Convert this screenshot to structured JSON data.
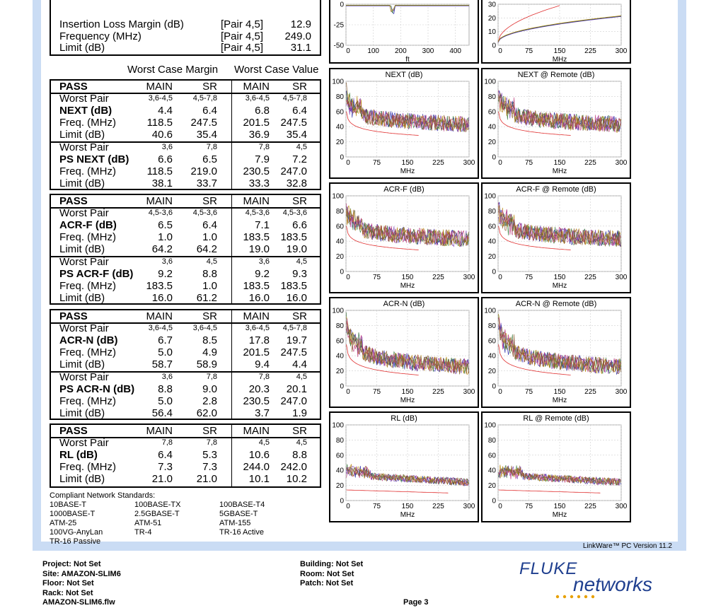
{
  "top_summary": {
    "rows": [
      {
        "label": "Insertion Loss Margin (dB)",
        "pair": "[Pair 4,5]",
        "value": "12.9"
      },
      {
        "label": "Frequency (MHz)",
        "pair": "[Pair 4,5]",
        "value": "249.0"
      },
      {
        "label": "Limit (dB)",
        "pair": "[Pair 4,5]",
        "value": "31.1"
      }
    ]
  },
  "column_headers": {
    "margin": "Worst Case Margin",
    "value": "Worst Case Value"
  },
  "sections": [
    {
      "status": "PASS",
      "cols": [
        "MAIN",
        "SR",
        "MAIN",
        "SR"
      ],
      "groups": [
        {
          "rows": [
            {
              "label": "Worst Pair",
              "v": [
                "3,6-4,5",
                "4,5-7,8",
                "3,6-4,5",
                "4,5-7,8"
              ],
              "small": true
            },
            {
              "label": "NEXT (dB)",
              "v": [
                "4.4",
                "6.4",
                "6.8",
                "6.4"
              ],
              "bold": true
            },
            {
              "label": "Freq. (MHz)",
              "v": [
                "118.5",
                "247.5",
                "201.5",
                "247.5"
              ]
            },
            {
              "label": "Limit (dB)",
              "v": [
                "40.6",
                "35.4",
                "36.9",
                "35.4"
              ]
            }
          ]
        },
        {
          "rows": [
            {
              "label": "Worst Pair",
              "v": [
                "3,6",
                "7,8",
                "7,8",
                "4,5"
              ],
              "small": true
            },
            {
              "label": "PS NEXT (dB)",
              "v": [
                "6.6",
                "6.5",
                "7.9",
                "7.2"
              ],
              "bold": true
            },
            {
              "label": "Freq. (MHz)",
              "v": [
                "118.5",
                "219.0",
                "230.5",
                "247.0"
              ]
            },
            {
              "label": "Limit (dB)",
              "v": [
                "38.1",
                "33.7",
                "33.3",
                "32.8"
              ]
            }
          ]
        }
      ]
    },
    {
      "status": "PASS",
      "cols": [
        "MAIN",
        "SR",
        "MAIN",
        "SR"
      ],
      "groups": [
        {
          "rows": [
            {
              "label": "Worst Pair",
              "v": [
                "4,5-3,6",
                "4,5-3,6",
                "4,5-3,6",
                "4,5-3,6"
              ],
              "small": true
            },
            {
              "label": "ACR-F (dB)",
              "v": [
                "6.5",
                "6.4",
                "7.1",
                "6.6"
              ],
              "bold": true
            },
            {
              "label": "Freq. (MHz)",
              "v": [
                "1.0",
                "1.0",
                "183.5",
                "183.5"
              ]
            },
            {
              "label": "Limit (dB)",
              "v": [
                "64.2",
                "64.2",
                "19.0",
                "19.0"
              ]
            }
          ]
        },
        {
          "rows": [
            {
              "label": "Worst Pair",
              "v": [
                "3,6",
                "4,5",
                "3,6",
                "4,5"
              ],
              "small": true
            },
            {
              "label": "PS ACR-F (dB)",
              "v": [
                "9.2",
                "8.8",
                "9.2",
                "9.3"
              ],
              "bold": true
            },
            {
              "label": "Freq. (MHz)",
              "v": [
                "183.5",
                "1.0",
                "183.5",
                "183.5"
              ]
            },
            {
              "label": "Limit (dB)",
              "v": [
                "16.0",
                "61.2",
                "16.0",
                "16.0"
              ]
            }
          ]
        }
      ]
    },
    {
      "status": "PASS",
      "cols": [
        "MAIN",
        "SR",
        "MAIN",
        "SR"
      ],
      "groups": [
        {
          "rows": [
            {
              "label": "Worst Pair",
              "v": [
                "3,6-4,5",
                "3,6-4,5",
                "3,6-4,5",
                "4,5-7,8"
              ],
              "small": true
            },
            {
              "label": "ACR-N (dB)",
              "v": [
                "6.7",
                "8.5",
                "17.8",
                "19.7"
              ],
              "bold": true
            },
            {
              "label": "Freq. (MHz)",
              "v": [
                "5.0",
                "4.9",
                "201.5",
                "247.5"
              ]
            },
            {
              "label": "Limit (dB)",
              "v": [
                "58.7",
                "58.9",
                "9.4",
                "4.4"
              ]
            }
          ]
        },
        {
          "rows": [
            {
              "label": "Worst Pair",
              "v": [
                "3,6",
                "7,8",
                "7,8",
                "4,5"
              ],
              "small": true
            },
            {
              "label": "PS ACR-N (dB)",
              "v": [
                "8.8",
                "9.0",
                "20.3",
                "20.1"
              ],
              "bold": true
            },
            {
              "label": "Freq. (MHz)",
              "v": [
                "5.0",
                "2.8",
                "230.5",
                "247.0"
              ]
            },
            {
              "label": "Limit (dB)",
              "v": [
                "56.4",
                "62.0",
                "3.7",
                "1.9"
              ]
            }
          ]
        }
      ]
    },
    {
      "status": "PASS",
      "cols": [
        "MAIN",
        "SR",
        "MAIN",
        "SR"
      ],
      "groups": [
        {
          "rows": [
            {
              "label": "Worst Pair",
              "v": [
                "7,8",
                "7,8",
                "4,5",
                "4,5"
              ],
              "small": true
            },
            {
              "label": "RL (dB)",
              "v": [
                "6.4",
                "5.3",
                "10.6",
                "8.8"
              ],
              "bold": true
            },
            {
              "label": "Freq. (MHz)",
              "v": [
                "7.3",
                "7.3",
                "244.0",
                "242.0"
              ]
            },
            {
              "label": "Limit (dB)",
              "v": [
                "21.0",
                "21.0",
                "10.1",
                "10.2"
              ]
            }
          ]
        }
      ]
    }
  ],
  "standards": {
    "title": "Compliant Network Standards:",
    "items": [
      "10BASE-T",
      "100BASE-TX",
      "100BASE-T4",
      "1000BASE-T",
      "2.5GBASE-T",
      "5GBASE-T",
      "ATM-25",
      "ATM-51",
      "ATM-155",
      "100VG-AnyLan",
      "TR-4",
      "TR-16 Active",
      "TR-16 Passive"
    ]
  },
  "chart_data": [
    {
      "type": "line",
      "title": "",
      "xlabel": "ft",
      "xticks": [
        "0",
        "100",
        "200",
        "300",
        "400"
      ],
      "yticks": [
        "0",
        "-25",
        "-50"
      ],
      "xlim": [
        0,
        450
      ],
      "ylim": [
        -50,
        0
      ]
    },
    {
      "type": "line",
      "title": "",
      "xlabel": "MHz",
      "xticks": [
        "0",
        "75",
        "150",
        "225",
        "300"
      ],
      "yticks": [
        "30",
        "20",
        "10",
        "0"
      ],
      "xlim": [
        0,
        300
      ],
      "ylim": [
        0,
        30
      ]
    },
    {
      "type": "line",
      "title": "NEXT (dB)",
      "xlabel": "MHz",
      "xticks": [
        "0",
        "75",
        "150",
        "225",
        "300"
      ],
      "yticks": [
        "100",
        "80",
        "60",
        "40",
        "20",
        "0"
      ],
      "xlim": [
        0,
        300
      ],
      "ylim": [
        0,
        100
      ]
    },
    {
      "type": "line",
      "title": "NEXT @ Remote (dB)",
      "xlabel": "MHz",
      "xticks": [
        "0",
        "75",
        "150",
        "225",
        "300"
      ],
      "yticks": [
        "100",
        "80",
        "60",
        "40",
        "20",
        "0"
      ],
      "xlim": [
        0,
        300
      ],
      "ylim": [
        0,
        100
      ]
    },
    {
      "type": "line",
      "title": "ACR-F (dB)",
      "xlabel": "MHz",
      "xticks": [
        "0",
        "75",
        "150",
        "225",
        "300"
      ],
      "yticks": [
        "100",
        "80",
        "60",
        "40",
        "20",
        "0"
      ],
      "xlim": [
        0,
        300
      ],
      "ylim": [
        0,
        100
      ]
    },
    {
      "type": "line",
      "title": "ACR-F @ Remote (dB)",
      "xlabel": "MHz",
      "xticks": [
        "0",
        "75",
        "150",
        "225",
        "300"
      ],
      "yticks": [
        "100",
        "80",
        "60",
        "40",
        "20",
        "0"
      ],
      "xlim": [
        0,
        300
      ],
      "ylim": [
        0,
        100
      ]
    },
    {
      "type": "line",
      "title": "ACR-N (dB)",
      "xlabel": "MHz",
      "xticks": [
        "0",
        "75",
        "150",
        "225",
        "300"
      ],
      "yticks": [
        "100",
        "80",
        "60",
        "40",
        "20",
        "0"
      ],
      "xlim": [
        0,
        300
      ],
      "ylim": [
        0,
        100
      ]
    },
    {
      "type": "line",
      "title": "ACR-N @ Remote (dB)",
      "xlabel": "MHz",
      "xticks": [
        "0",
        "75",
        "150",
        "225",
        "300"
      ],
      "yticks": [
        "100",
        "80",
        "60",
        "40",
        "20",
        "0"
      ],
      "xlim": [
        0,
        300
      ],
      "ylim": [
        0,
        100
      ]
    },
    {
      "type": "line",
      "title": "RL (dB)",
      "xlabel": "MHz",
      "xticks": [
        "0",
        "75",
        "150",
        "225",
        "300"
      ],
      "yticks": [
        "100",
        "80",
        "60",
        "40",
        "20",
        "0"
      ],
      "xlim": [
        0,
        300
      ],
      "ylim": [
        0,
        100
      ]
    },
    {
      "type": "line",
      "title": "RL @ Remote (dB)",
      "xlabel": "MHz",
      "xticks": [
        "0",
        "75",
        "150",
        "225",
        "300"
      ],
      "yticks": [
        "100",
        "80",
        "60",
        "40",
        "20",
        "0"
      ],
      "xlim": [
        0,
        300
      ],
      "ylim": [
        0,
        100
      ]
    }
  ],
  "series_colors": [
    "#7b3fb8",
    "#2a2aa8",
    "#3f7f3f",
    "#b8860b",
    "#c04080",
    "#8b5a2b"
  ],
  "limit_color": "#e03030",
  "linkware": "LinkWare™ PC Version 11.2",
  "footer": {
    "left": [
      "Project: Not Set",
      "Site: AMAZON-SLIM6",
      "Floor: Not Set",
      "Rack: Not Set",
      "AMAZON-SLIM6.flw"
    ],
    "middle": [
      "Building: Not Set",
      "Room: Not Set",
      "Patch: Not Set"
    ],
    "page": "Page 3"
  },
  "logo": {
    "line1": "FLUKE",
    "line2": "networks"
  }
}
